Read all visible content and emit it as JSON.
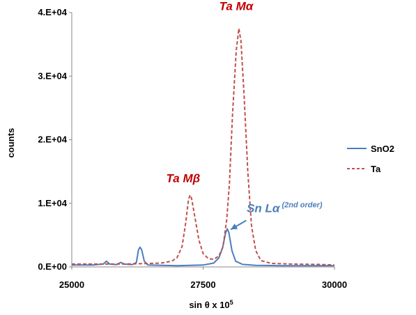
{
  "chart_data": {
    "type": "line",
    "xlabel_main": "sin θ x 10",
    "xlabel_sup": "5",
    "ylabel": "counts",
    "xlim": [
      25000,
      30000
    ],
    "ylim": [
      0,
      40000
    ],
    "x_ticks": [
      25000,
      27500,
      30000
    ],
    "x_tick_labels": [
      "25000",
      "27500",
      "30000"
    ],
    "y_ticks": [
      0,
      10000,
      20000,
      30000,
      40000
    ],
    "y_tick_labels": [
      "0.E+00",
      "1.E+04",
      "2.E+04",
      "3.E+04",
      "4.E+04"
    ],
    "grid": false,
    "legend_position": "right",
    "series": [
      {
        "name": "SnO2",
        "color": "#4a7ebb",
        "dash": "solid",
        "points": [
          [
            25000,
            300
          ],
          [
            25400,
            300
          ],
          [
            25600,
            450
          ],
          [
            25660,
            900
          ],
          [
            25720,
            450
          ],
          [
            25850,
            350
          ],
          [
            25930,
            700
          ],
          [
            26000,
            450
          ],
          [
            26150,
            350
          ],
          [
            26230,
            700
          ],
          [
            26270,
            2700
          ],
          [
            26300,
            3100
          ],
          [
            26330,
            2700
          ],
          [
            26380,
            900
          ],
          [
            26450,
            300
          ],
          [
            27000,
            200
          ],
          [
            27500,
            300
          ],
          [
            27700,
            600
          ],
          [
            27800,
            1400
          ],
          [
            27870,
            3000
          ],
          [
            27930,
            5400
          ],
          [
            27960,
            6000
          ],
          [
            27990,
            5400
          ],
          [
            28050,
            2500
          ],
          [
            28120,
            900
          ],
          [
            28250,
            400
          ],
          [
            28500,
            250
          ],
          [
            29000,
            200
          ],
          [
            30000,
            200
          ]
        ]
      },
      {
        "name": "Ta",
        "color": "#c0504d",
        "dash": "dashed",
        "points": [
          [
            25000,
            450
          ],
          [
            25500,
            450
          ],
          [
            26000,
            450
          ],
          [
            26300,
            500
          ],
          [
            26700,
            600
          ],
          [
            26900,
            900
          ],
          [
            27000,
            1400
          ],
          [
            27100,
            3200
          ],
          [
            27170,
            7000
          ],
          [
            27220,
            10500
          ],
          [
            27250,
            11300
          ],
          [
            27280,
            10800
          ],
          [
            27340,
            8000
          ],
          [
            27420,
            4200
          ],
          [
            27500,
            2100
          ],
          [
            27600,
            1300
          ],
          [
            27700,
            1200
          ],
          [
            27800,
            1700
          ],
          [
            27880,
            3200
          ],
          [
            27950,
            7500
          ],
          [
            28000,
            13000
          ],
          [
            28060,
            24000
          ],
          [
            28130,
            34000
          ],
          [
            28180,
            37500
          ],
          [
            28220,
            35500
          ],
          [
            28280,
            27000
          ],
          [
            28350,
            15000
          ],
          [
            28420,
            6500
          ],
          [
            28500,
            2600
          ],
          [
            28600,
            1000
          ],
          [
            28800,
            550
          ],
          [
            29200,
            450
          ],
          [
            29700,
            400
          ],
          [
            30000,
            300
          ]
        ]
      }
    ],
    "annotations": [
      {
        "id": "ta-malpha",
        "text": "Ta Mα",
        "sup": "",
        "color": "#c00000",
        "x": 28130,
        "y": 40400
      },
      {
        "id": "ta-mbeta",
        "text": "Ta Mβ",
        "sup": "",
        "color": "#c00000",
        "x": 27120,
        "y": 13300
      },
      {
        "id": "sn-lalpha",
        "text": "Sn Lα",
        "sup": "(2nd order)",
        "color": "#4a7ebb",
        "x": 28330,
        "y": 8600
      }
    ]
  }
}
